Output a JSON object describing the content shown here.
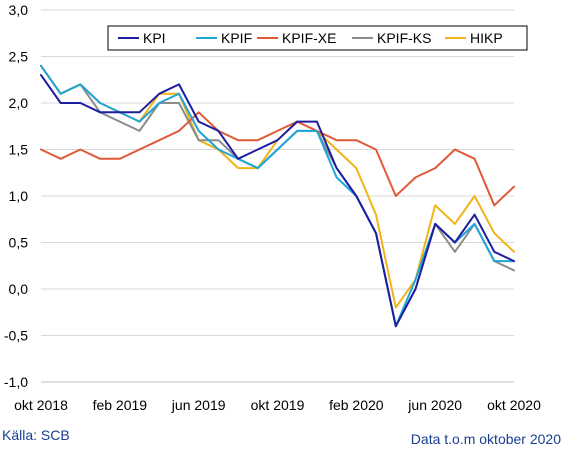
{
  "chart_data": {
    "type": "line",
    "x": [
      "okt 2018",
      "nov 2018",
      "dec 2018",
      "jan 2019",
      "feb 2019",
      "mar 2019",
      "apr 2019",
      "maj 2019",
      "jun 2019",
      "jul 2019",
      "aug 2019",
      "sep 2019",
      "okt 2019",
      "nov 2019",
      "dec 2019",
      "jan 2020",
      "feb 2020",
      "mar 2020",
      "apr 2020",
      "maj 2020",
      "jun 2020",
      "jul 2020",
      "aug 2020",
      "sep 2020",
      "okt 2020"
    ],
    "xtick_labels": [
      "okt 2018",
      "feb 2019",
      "jun 2019",
      "okt 2019",
      "feb 2020",
      "jun 2020",
      "okt 2020"
    ],
    "xtick_indices": [
      0,
      4,
      8,
      12,
      16,
      20,
      24
    ],
    "ylim": [
      -1.0,
      3.0
    ],
    "yticks": [
      "3,0",
      "2,5",
      "2,0",
      "1,5",
      "1,0",
      "0,5",
      "0,0",
      "-0,5",
      "-1,0"
    ],
    "ytick_values": [
      3.0,
      2.5,
      2.0,
      1.5,
      1.0,
      0.5,
      0.0,
      -0.5,
      -1.0
    ],
    "grid": "horizontal",
    "legend_position": "top-right",
    "series": [
      {
        "name": "KPI",
        "color": "#1e1ea0",
        "values": [
          2.3,
          2.0,
          2.0,
          1.9,
          1.9,
          1.9,
          2.1,
          2.2,
          1.8,
          1.7,
          1.4,
          1.5,
          1.6,
          1.8,
          1.8,
          1.3,
          1.0,
          0.6,
          -0.4,
          0.0,
          0.7,
          0.5,
          0.8,
          0.4,
          0.3
        ]
      },
      {
        "name": "KPIF",
        "color": "#1fa6d6",
        "values": [
          2.4,
          2.1,
          2.2,
          2.0,
          1.9,
          1.8,
          2.0,
          2.1,
          1.7,
          1.5,
          1.4,
          1.3,
          1.5,
          1.7,
          1.7,
          1.2,
          1.0,
          0.6,
          -0.4,
          0.1,
          0.7,
          0.5,
          0.7,
          0.3,
          0.3
        ]
      },
      {
        "name": "KPIF-XE",
        "color": "#e05a3a",
        "values": [
          1.5,
          1.4,
          1.5,
          1.4,
          1.4,
          1.5,
          1.6,
          1.7,
          1.9,
          1.7,
          1.6,
          1.6,
          1.7,
          1.8,
          1.7,
          1.6,
          1.6,
          1.5,
          1.0,
          1.2,
          1.3,
          1.5,
          1.4,
          0.9,
          1.1
        ]
      },
      {
        "name": "KPIF-KS",
        "color": "#8c8c8c",
        "values": [
          2.4,
          2.1,
          2.2,
          1.9,
          1.8,
          1.7,
          2.0,
          2.0,
          1.6,
          1.6,
          1.4,
          1.3,
          1.5,
          1.7,
          1.7,
          1.3,
          1.0,
          0.6,
          -0.4,
          0.0,
          0.7,
          0.4,
          0.7,
          0.3,
          0.2
        ]
      },
      {
        "name": "HIKP",
        "color": "#f0b419",
        "values": [
          2.4,
          2.1,
          2.2,
          2.0,
          1.9,
          1.8,
          2.1,
          2.1,
          1.6,
          1.5,
          1.3,
          1.3,
          1.6,
          1.8,
          1.7,
          1.5,
          1.3,
          0.8,
          -0.2,
          0.1,
          0.9,
          0.7,
          1.0,
          0.6,
          0.4
        ]
      }
    ]
  },
  "footer": {
    "source": "Källa: SCB",
    "note": "Data t.o.m oktober 2020"
  }
}
